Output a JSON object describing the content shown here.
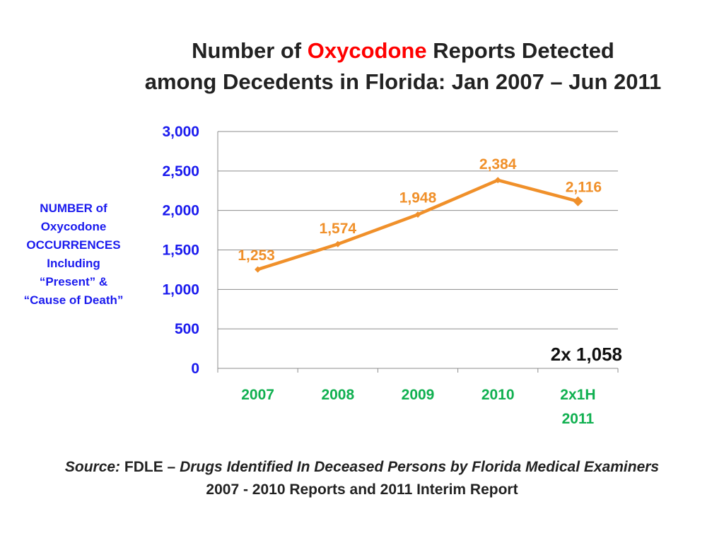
{
  "title": {
    "line1_before": "Number of ",
    "line1_highlight": "Oxycodone",
    "line1_after": " Reports Detected",
    "line2": "among Decedents in Florida: Jan 2007 – Jun 2011"
  },
  "ylabel": "NUMBER of\nOxycodone\nOCCURRENCES\nIncluding\n“Present”  &\n“Cause of Death”",
  "chart_data": {
    "type": "line",
    "title": "Number of Oxycodone Reports Detected among Decedents in Florida: Jan 2007 – Jun 2011",
    "ylabel": "NUMBER of Oxycodone OCCURRENCES Including “Present” & “Cause of Death”",
    "xlabel": "",
    "categories": [
      "2007",
      "2008",
      "2009",
      "2010",
      "2x1H\n2011"
    ],
    "values": [
      1253,
      1574,
      1948,
      2384,
      2116
    ],
    "value_labels": [
      "1,253",
      "1,574",
      "1,948",
      "2,384",
      "2,116"
    ],
    "ylim": [
      0,
      3000
    ],
    "yticks": [
      0,
      500,
      1000,
      1500,
      2000,
      2500,
      3000
    ],
    "ytick_labels": [
      "0",
      "500",
      "1,000",
      "1,500",
      "2,000",
      "2,500",
      "3,000"
    ],
    "grid": true,
    "annotation": "2x 1,058",
    "colors": {
      "line": "#f0902a",
      "ytick": "#1a1aee",
      "xtick": "#10b050",
      "highlight": "#ff0000"
    }
  },
  "source": {
    "label": "Source:",
    "org": " FDLE – ",
    "title": "Drugs Identified In Deceased Persons by Florida Medical Examiners",
    "line2": "2007 - 2010 Reports and 2011 Interim  Report"
  }
}
